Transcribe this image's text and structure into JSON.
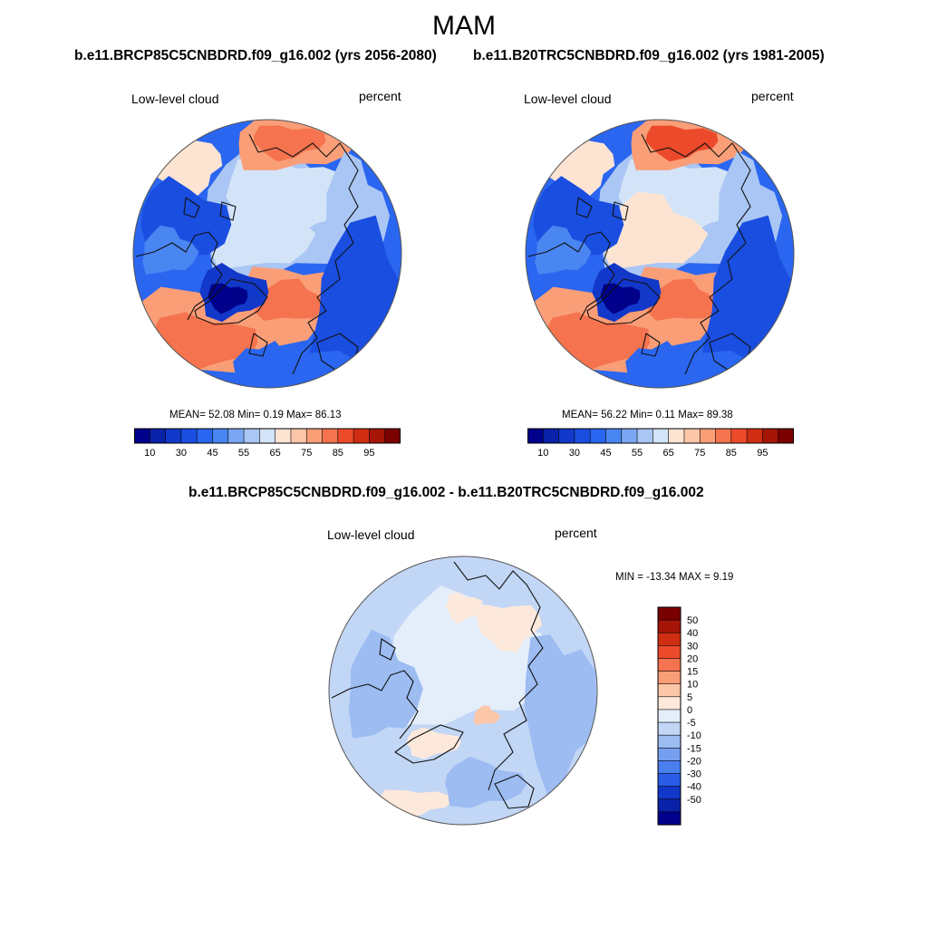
{
  "figure": {
    "title": "MAM",
    "run_a_title": "b.e11.BRCP85C5CNBDRD.f09_g16.002 (yrs 2056-2080)",
    "run_b_title": "b.e11.B20TRC5CNBDRD.f09_g16.002 (yrs 1981-2005)",
    "diff_title": "b.e11.BRCP85C5CNBDRD.f09_g16.002 - b.e11.B20TRC5CNBDRD.f09_g16.002"
  },
  "chart_data": [
    {
      "type": "heatmap",
      "projection": "polar stereographic (north)",
      "variable": "Low-level cloud",
      "units": "percent",
      "stats_text": "MEAN=  52.08  Min=   0.19  Max=  86.13",
      "stats": {
        "mean": 52.08,
        "min": 0.19,
        "max": 86.13
      },
      "colorbar": {
        "levels": [
          5,
          10,
          20,
          30,
          40,
          45,
          50,
          55,
          60,
          65,
          70,
          75,
          80,
          85,
          90,
          95
        ],
        "tick_labels": [
          "10",
          "30",
          "45",
          "55",
          "65",
          "75",
          "85",
          "95"
        ],
        "colors": [
          "#00008b",
          "#0a22a8",
          "#1238c9",
          "#1a4ee0",
          "#2a66f0",
          "#4a86f2",
          "#7aa6f2",
          "#aac6f4",
          "#d4e4f8",
          "#fde4d2",
          "#fcc6a8",
          "#fa9e78",
          "#f5734e",
          "#ec4a2a",
          "#d02e12",
          "#a51508",
          "#7a0000"
        ]
      }
    },
    {
      "type": "heatmap",
      "projection": "polar stereographic (north)",
      "variable": "Low-level cloud",
      "units": "percent",
      "stats_text": "MEAN=  56.22  Min=   0.11  Max=  89.38",
      "stats": {
        "mean": 56.22,
        "min": 0.11,
        "max": 89.38
      },
      "colorbar": {
        "levels": [
          5,
          10,
          20,
          30,
          40,
          45,
          50,
          55,
          60,
          65,
          70,
          75,
          80,
          85,
          90,
          95
        ],
        "tick_labels": [
          "10",
          "30",
          "45",
          "55",
          "65",
          "75",
          "85",
          "95"
        ],
        "colors": [
          "#00008b",
          "#0a22a8",
          "#1238c9",
          "#1a4ee0",
          "#2a66f0",
          "#4a86f2",
          "#7aa6f2",
          "#aac6f4",
          "#d4e4f8",
          "#fde4d2",
          "#fcc6a8",
          "#fa9e78",
          "#f5734e",
          "#ec4a2a",
          "#d02e12",
          "#a51508",
          "#7a0000"
        ]
      }
    },
    {
      "type": "heatmap",
      "projection": "polar stereographic (north)",
      "variable": "Low-level cloud",
      "units": "percent",
      "stats_text": "MIN = -13.34 MAX =   9.19",
      "stats": {
        "min": -13.34,
        "max": 9.19
      },
      "colorbar": {
        "orientation": "vertical",
        "tick_labels": [
          "50",
          "40",
          "30",
          "20",
          "15",
          "10",
          "5",
          "0",
          "-5",
          "-10",
          "-15",
          "-20",
          "-30",
          "-40",
          "-50"
        ],
        "colors": [
          "#7a0000",
          "#a51508",
          "#d02e12",
          "#ec4a2a",
          "#f5734e",
          "#fa9e78",
          "#fcc6a8",
          "#fde9dc",
          "#e4eefa",
          "#c2d6f6",
          "#9cbcf2",
          "#769ff0",
          "#4a7ff0",
          "#2a5ce8",
          "#1238c9",
          "#0a22a8",
          "#00008b"
        ]
      }
    }
  ]
}
